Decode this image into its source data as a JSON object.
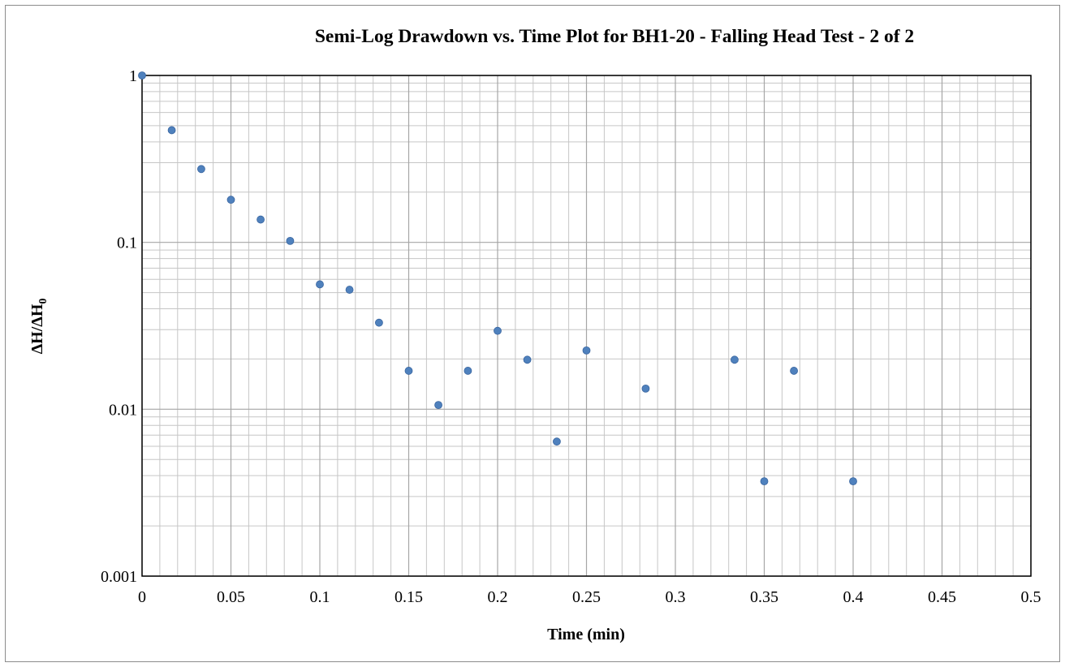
{
  "chart_data": {
    "type": "scatter",
    "title": "Semi-Log Drawdown vs. Time Plot for BH1-20 - Falling Head Test - 2 of 2",
    "xlabel": "Time (min)",
    "ylabel": {
      "main": "ΔH/ΔH",
      "subscript": "0"
    },
    "xlim": [
      0,
      0.5
    ],
    "ylim": [
      0.001,
      1
    ],
    "yscale": "log",
    "grid": true,
    "x_ticks": [
      0,
      0.05,
      0.1,
      0.15,
      0.2,
      0.25,
      0.3,
      0.35,
      0.4,
      0.45,
      0.5
    ],
    "x_tick_labels": [
      "0",
      "0.05",
      "0.1",
      "0.15",
      "0.2",
      "0.25",
      "0.3",
      "0.35",
      "0.4",
      "0.45",
      "0.5"
    ],
    "y_ticks": [
      0.001,
      0.01,
      0.1,
      1
    ],
    "y_tick_labels": [
      "0.001",
      "0.01",
      "0.1",
      "1"
    ],
    "marker_color": "#4f81bd",
    "marker_edge": "#3a66a0",
    "series": [
      {
        "points": [
          [
            0,
            1
          ],
          [
            0.0167,
            0.47
          ],
          [
            0.0333,
            0.275
          ],
          [
            0.05,
            0.18
          ],
          [
            0.0667,
            0.137
          ],
          [
            0.0833,
            0.102
          ],
          [
            0.1,
            0.056
          ],
          [
            0.1167,
            0.052
          ],
          [
            0.1333,
            0.033
          ],
          [
            0.15,
            0.017
          ],
          [
            0.1667,
            0.0106
          ],
          [
            0.1833,
            0.017
          ],
          [
            0.2,
            0.0295
          ],
          [
            0.2167,
            0.0198
          ],
          [
            0.2333,
            0.0064
          ],
          [
            0.25,
            0.0225
          ],
          [
            0.2833,
            0.0133
          ],
          [
            0.3333,
            0.0198
          ],
          [
            0.35,
            0.0037
          ],
          [
            0.3667,
            0.017
          ],
          [
            0.4,
            0.0037
          ]
        ]
      }
    ]
  }
}
